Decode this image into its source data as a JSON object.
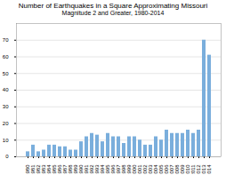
{
  "chart_data": {
    "type": "bar",
    "title": "Number of Earthquakes in a Square Approximating Missouri",
    "subtitle": "Magnitude 2 and Greater, 1980-2014",
    "categories": [
      "1980",
      "1981",
      "1982",
      "1983",
      "1984",
      "1985",
      "1986",
      "1987",
      "1988",
      "1989",
      "1990",
      "1991",
      "1992",
      "1993",
      "1994",
      "1995",
      "1996",
      "1997",
      "1998",
      "1999",
      "2000",
      "2001",
      "2002",
      "2003",
      "2004",
      "2005",
      "2006",
      "2007",
      "2008",
      "2009",
      "2010",
      "2011",
      "2012",
      "2013",
      "2014"
    ],
    "values": [
      3,
      7,
      3,
      4,
      7,
      7,
      6,
      6,
      4,
      4,
      9,
      12,
      14,
      13,
      9,
      14,
      12,
      12,
      8,
      12,
      12,
      10,
      7,
      7,
      12,
      10,
      16,
      14,
      14,
      14,
      16,
      14,
      16,
      70,
      61
    ],
    "color": "#7aaedc",
    "ylim": [
      0,
      80
    ],
    "yticks": [
      0,
      10,
      20,
      30,
      40,
      50,
      60,
      70
    ],
    "grid": true
  }
}
